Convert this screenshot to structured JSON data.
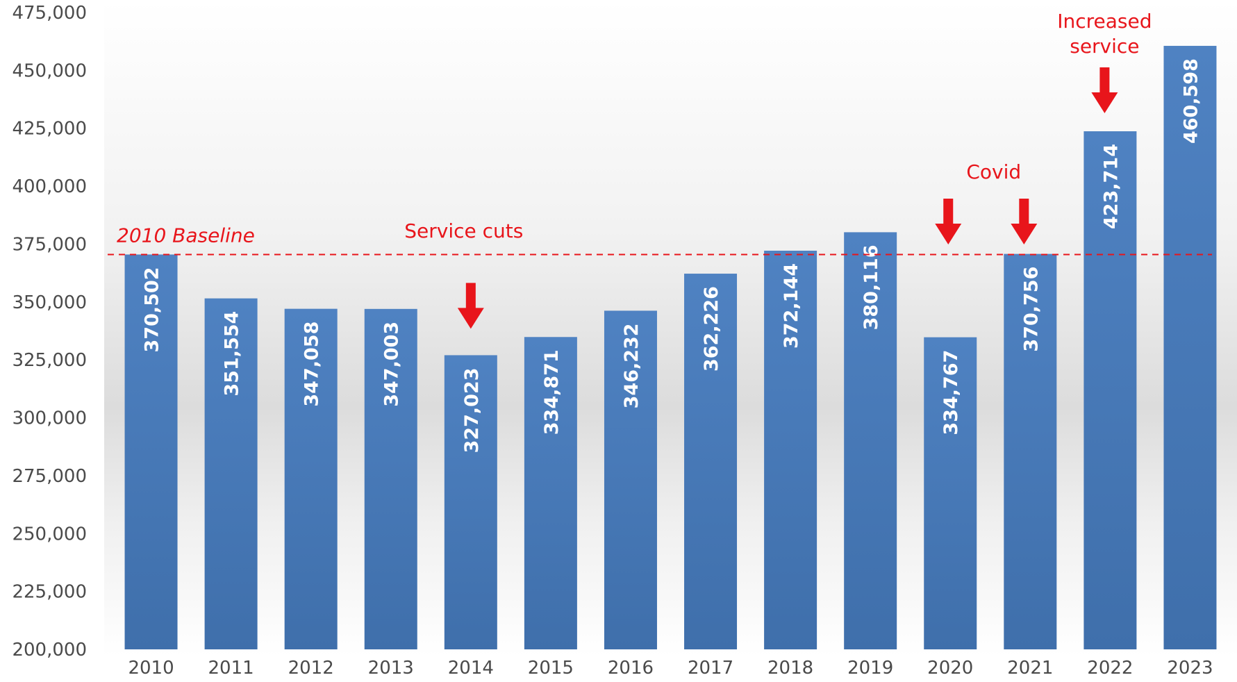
{
  "chart_data": {
    "type": "bar",
    "title": "",
    "xlabel": "",
    "ylabel": "",
    "categories": [
      "2010",
      "2011",
      "2012",
      "2013",
      "2014",
      "2015",
      "2016",
      "2017",
      "2018",
      "2019",
      "2020",
      "2021",
      "2022",
      "2023"
    ],
    "values": [
      370502,
      351554,
      347058,
      347003,
      327023,
      334871,
      346232,
      362226,
      372144,
      380116,
      334767,
      370756,
      423714,
      460598
    ],
    "value_labels": [
      "370,502",
      "351,554",
      "347,058",
      "347,003",
      "327,023",
      "334,871",
      "346,232",
      "362,226",
      "372,144",
      "380,116",
      "334,767",
      "370,756",
      "423,714",
      "460,598"
    ],
    "ylim": [
      200000,
      475000
    ],
    "yticks": [
      200000,
      225000,
      250000,
      275000,
      300000,
      325000,
      350000,
      375000,
      400000,
      425000,
      450000,
      475000
    ],
    "ytick_labels": [
      "200,000",
      "225,000",
      "250,000",
      "275,000",
      "300,000",
      "325,000",
      "350,000",
      "375,000",
      "400,000",
      "425,000",
      "450,000",
      "475,000"
    ],
    "grid": false,
    "bar_color": "#4a7ebb",
    "baseline": {
      "label": "2010 Baseline",
      "value": 370502,
      "color": "#e8151b"
    },
    "annotations": [
      {
        "text": "Service cuts",
        "arrow_at": "2014"
      },
      {
        "text": "Covid",
        "arrow_at": [
          "2020",
          "2021"
        ]
      },
      {
        "text_lines": [
          "Increased",
          "service"
        ],
        "arrow_at": "2022"
      }
    ],
    "annotation_color": "#e8151b"
  }
}
